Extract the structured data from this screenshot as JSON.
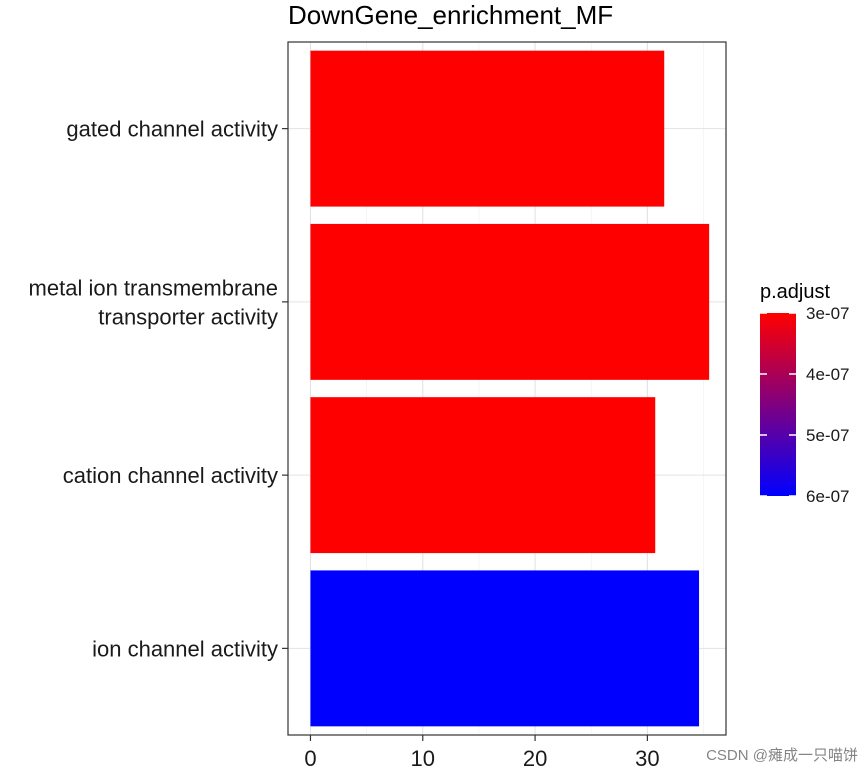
{
  "chart_data": {
    "type": "bar",
    "orientation": "horizontal",
    "title": "DownGene_enrichment_MF",
    "xlabel": "",
    "ylabel": "",
    "xlim": [
      -2,
      37
    ],
    "x_ticks": [
      0,
      10,
      20,
      30
    ],
    "categories": [
      "gated channel activity",
      "metal ion transmembrane\ntransporter activity",
      "cation channel activity",
      "ion channel activity"
    ],
    "values": [
      31.5,
      35.5,
      30.7,
      34.6
    ],
    "bar_colors": [
      "#ff0000",
      "#ff0000",
      "#ff0000",
      "#0000ff"
    ],
    "grid": true,
    "legend": {
      "title": "p.adjust",
      "position": "right",
      "labels": [
        "3e-07",
        "4e-07",
        "5e-07",
        "6e-07"
      ],
      "colors": {
        "low": "#ff0000",
        "high": "#0000ff"
      }
    }
  },
  "watermark": "CSDN @瘫成一只喵饼"
}
